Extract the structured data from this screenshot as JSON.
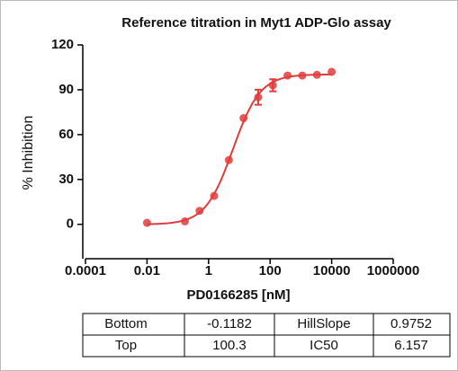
{
  "chart_data": {
    "type": "scatter",
    "title": "Reference titration in Myt1 ADP-Glo assay",
    "x_label": "PD0166285 [nM]",
    "y_label": "% Inhibition",
    "x": [
      0.01,
      0.17,
      0.51,
      1.52,
      4.57,
      13.7,
      41,
      123,
      370,
      1111,
      3333,
      10000
    ],
    "series": [
      {
        "color": "#e03c3c",
        "values": [
          1,
          2,
          9,
          19,
          43,
          71,
          85,
          93,
          99.5,
          99.5,
          100,
          102
        ],
        "errors": [
          null,
          null,
          null,
          null,
          null,
          null,
          5,
          4,
          null,
          null,
          null,
          null
        ]
      }
    ],
    "log_x": true,
    "xlim": [
      0.0001,
      1000000
    ],
    "xticks": [
      0.0001,
      0.01,
      1,
      100,
      10000,
      1000000
    ],
    "ylim": [
      -23,
      120
    ],
    "yticks": [
      0,
      30,
      60,
      90,
      120
    ]
  },
  "table": {
    "rows": [
      [
        "Bottom",
        -0.1182,
        "HillSlope",
        0.9752
      ],
      [
        "Top",
        100.3,
        "IC50",
        6.157
      ]
    ]
  }
}
